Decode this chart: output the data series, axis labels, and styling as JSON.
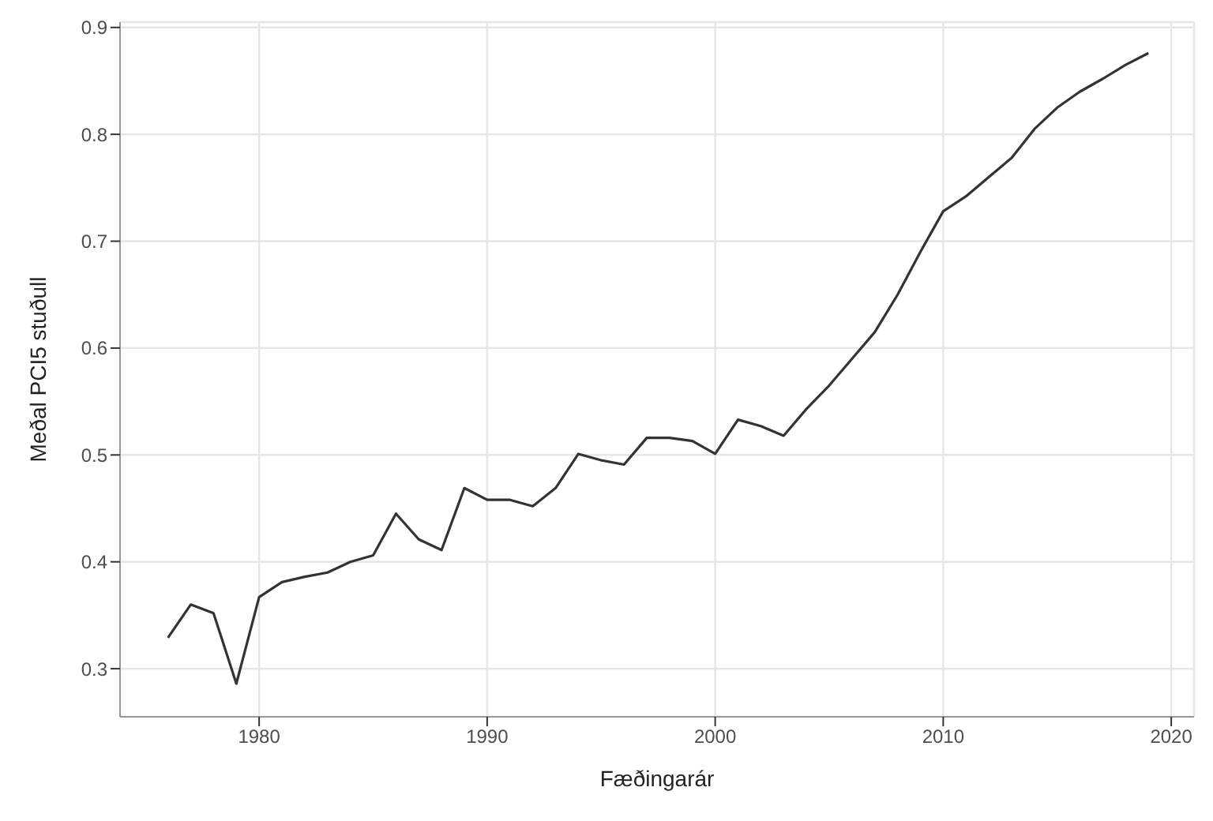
{
  "chart_data": {
    "type": "line",
    "xlabel": "Fæðingarár",
    "ylabel": "Meðal PCI5 stuðull",
    "x": [
      1976,
      1977,
      1978,
      1979,
      1980,
      1981,
      1982,
      1983,
      1984,
      1985,
      1986,
      1987,
      1988,
      1989,
      1990,
      1991,
      1992,
      1993,
      1994,
      1995,
      1996,
      1997,
      1998,
      1999,
      2000,
      2001,
      2002,
      2003,
      2004,
      2005,
      2006,
      2007,
      2008,
      2009,
      2010,
      2011,
      2012,
      2013,
      2014,
      2015,
      2016,
      2017,
      2018,
      2019
    ],
    "series": [
      {
        "color": "#333333",
        "values": [
          0.329,
          0.36,
          0.352,
          0.286,
          0.367,
          0.381,
          0.386,
          0.39,
          0.4,
          0.406,
          0.445,
          0.421,
          0.411,
          0.469,
          0.458,
          0.458,
          0.452,
          0.469,
          0.501,
          0.495,
          0.491,
          0.516,
          0.516,
          0.513,
          0.501,
          0.533,
          0.527,
          0.518,
          0.543,
          0.565,
          0.59,
          0.615,
          0.65,
          0.69,
          0.728,
          0.742,
          0.76,
          0.778,
          0.805,
          0.825,
          0.84,
          0.852,
          0.865,
          0.876
        ]
      }
    ],
    "xlim": [
      1973.9,
      2021
    ],
    "xticks": [
      1980,
      1990,
      2000,
      2010,
      2020
    ],
    "ylim": [
      0.255,
      0.905
    ],
    "yticks": [
      0.3,
      0.4,
      0.5,
      0.6,
      0.7,
      0.8,
      0.9
    ],
    "grid": true,
    "legend": false,
    "marker": "none",
    "line_style": "solid"
  }
}
